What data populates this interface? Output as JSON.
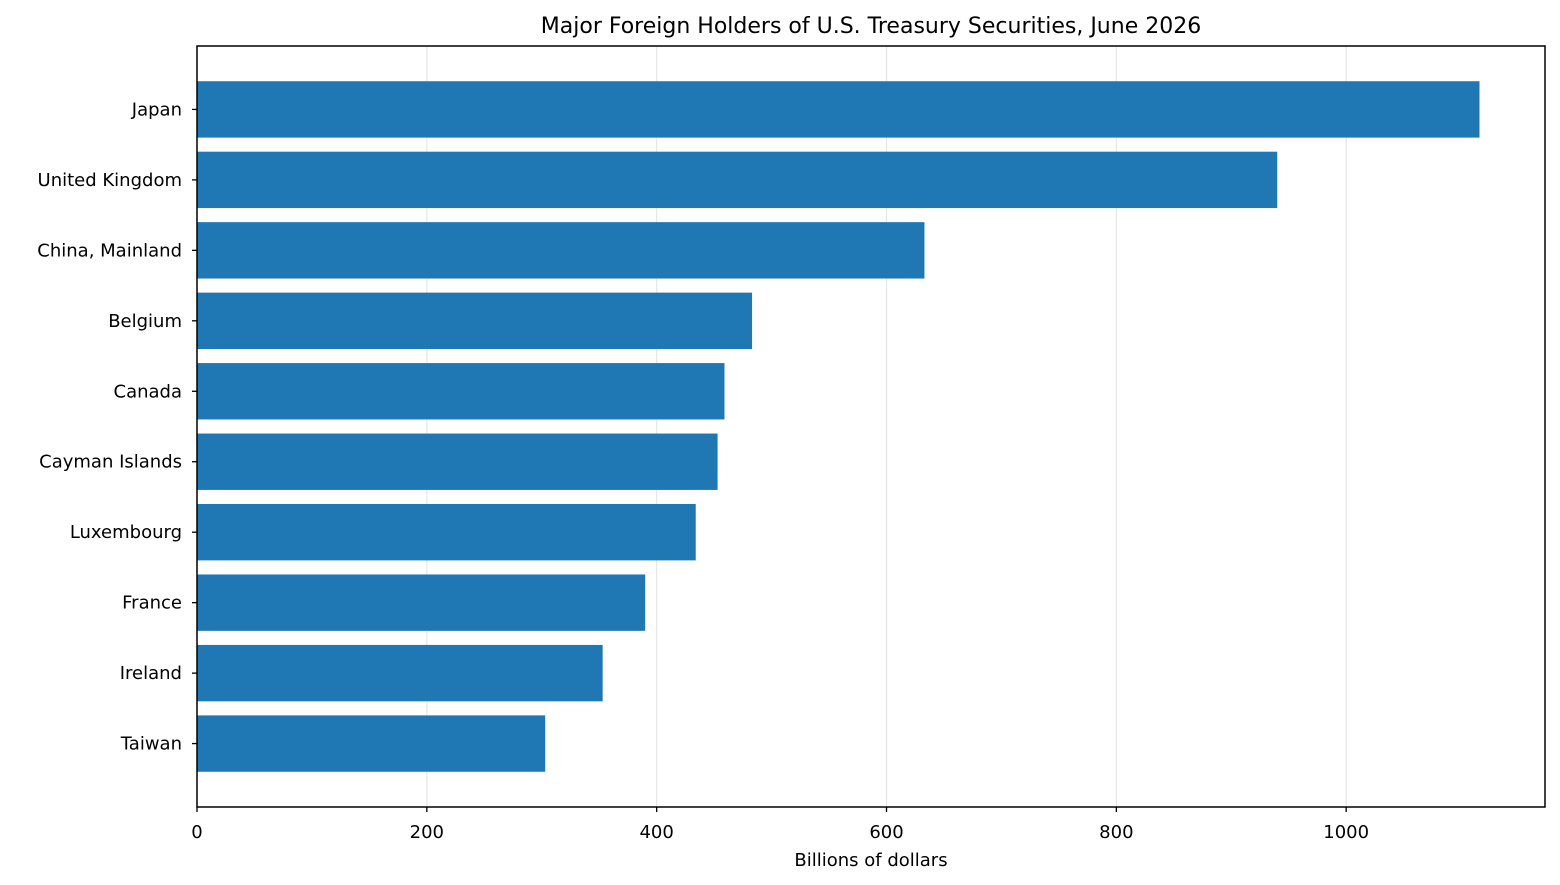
{
  "chart_data": {
    "type": "bar",
    "orientation": "horizontal",
    "title": "Major Foreign Holders of U.S. Treasury Securities, June 2026",
    "xlabel": "Billions of dollars",
    "ylabel": "",
    "categories": [
      "Japan",
      "United Kingdom",
      "China, Mainland",
      "Belgium",
      "Canada",
      "Cayman Islands",
      "Luxembourg",
      "France",
      "Ireland",
      "Taiwan"
    ],
    "values": [
      1116,
      940,
      633,
      483,
      459,
      453,
      434,
      390,
      353,
      303
    ],
    "xlim": [
      0,
      1173
    ],
    "xticks": [
      0,
      200,
      400,
      600,
      800,
      1000
    ],
    "xtick_labels": [
      "0",
      "200",
      "400",
      "600",
      "800",
      "1000"
    ],
    "grid": {
      "x": true,
      "y": false
    },
    "colors": {
      "bar": "#1f77b4",
      "grid": "#e6e6e6",
      "axis": "#000000",
      "background": "#ffffff"
    },
    "legend": "none"
  }
}
